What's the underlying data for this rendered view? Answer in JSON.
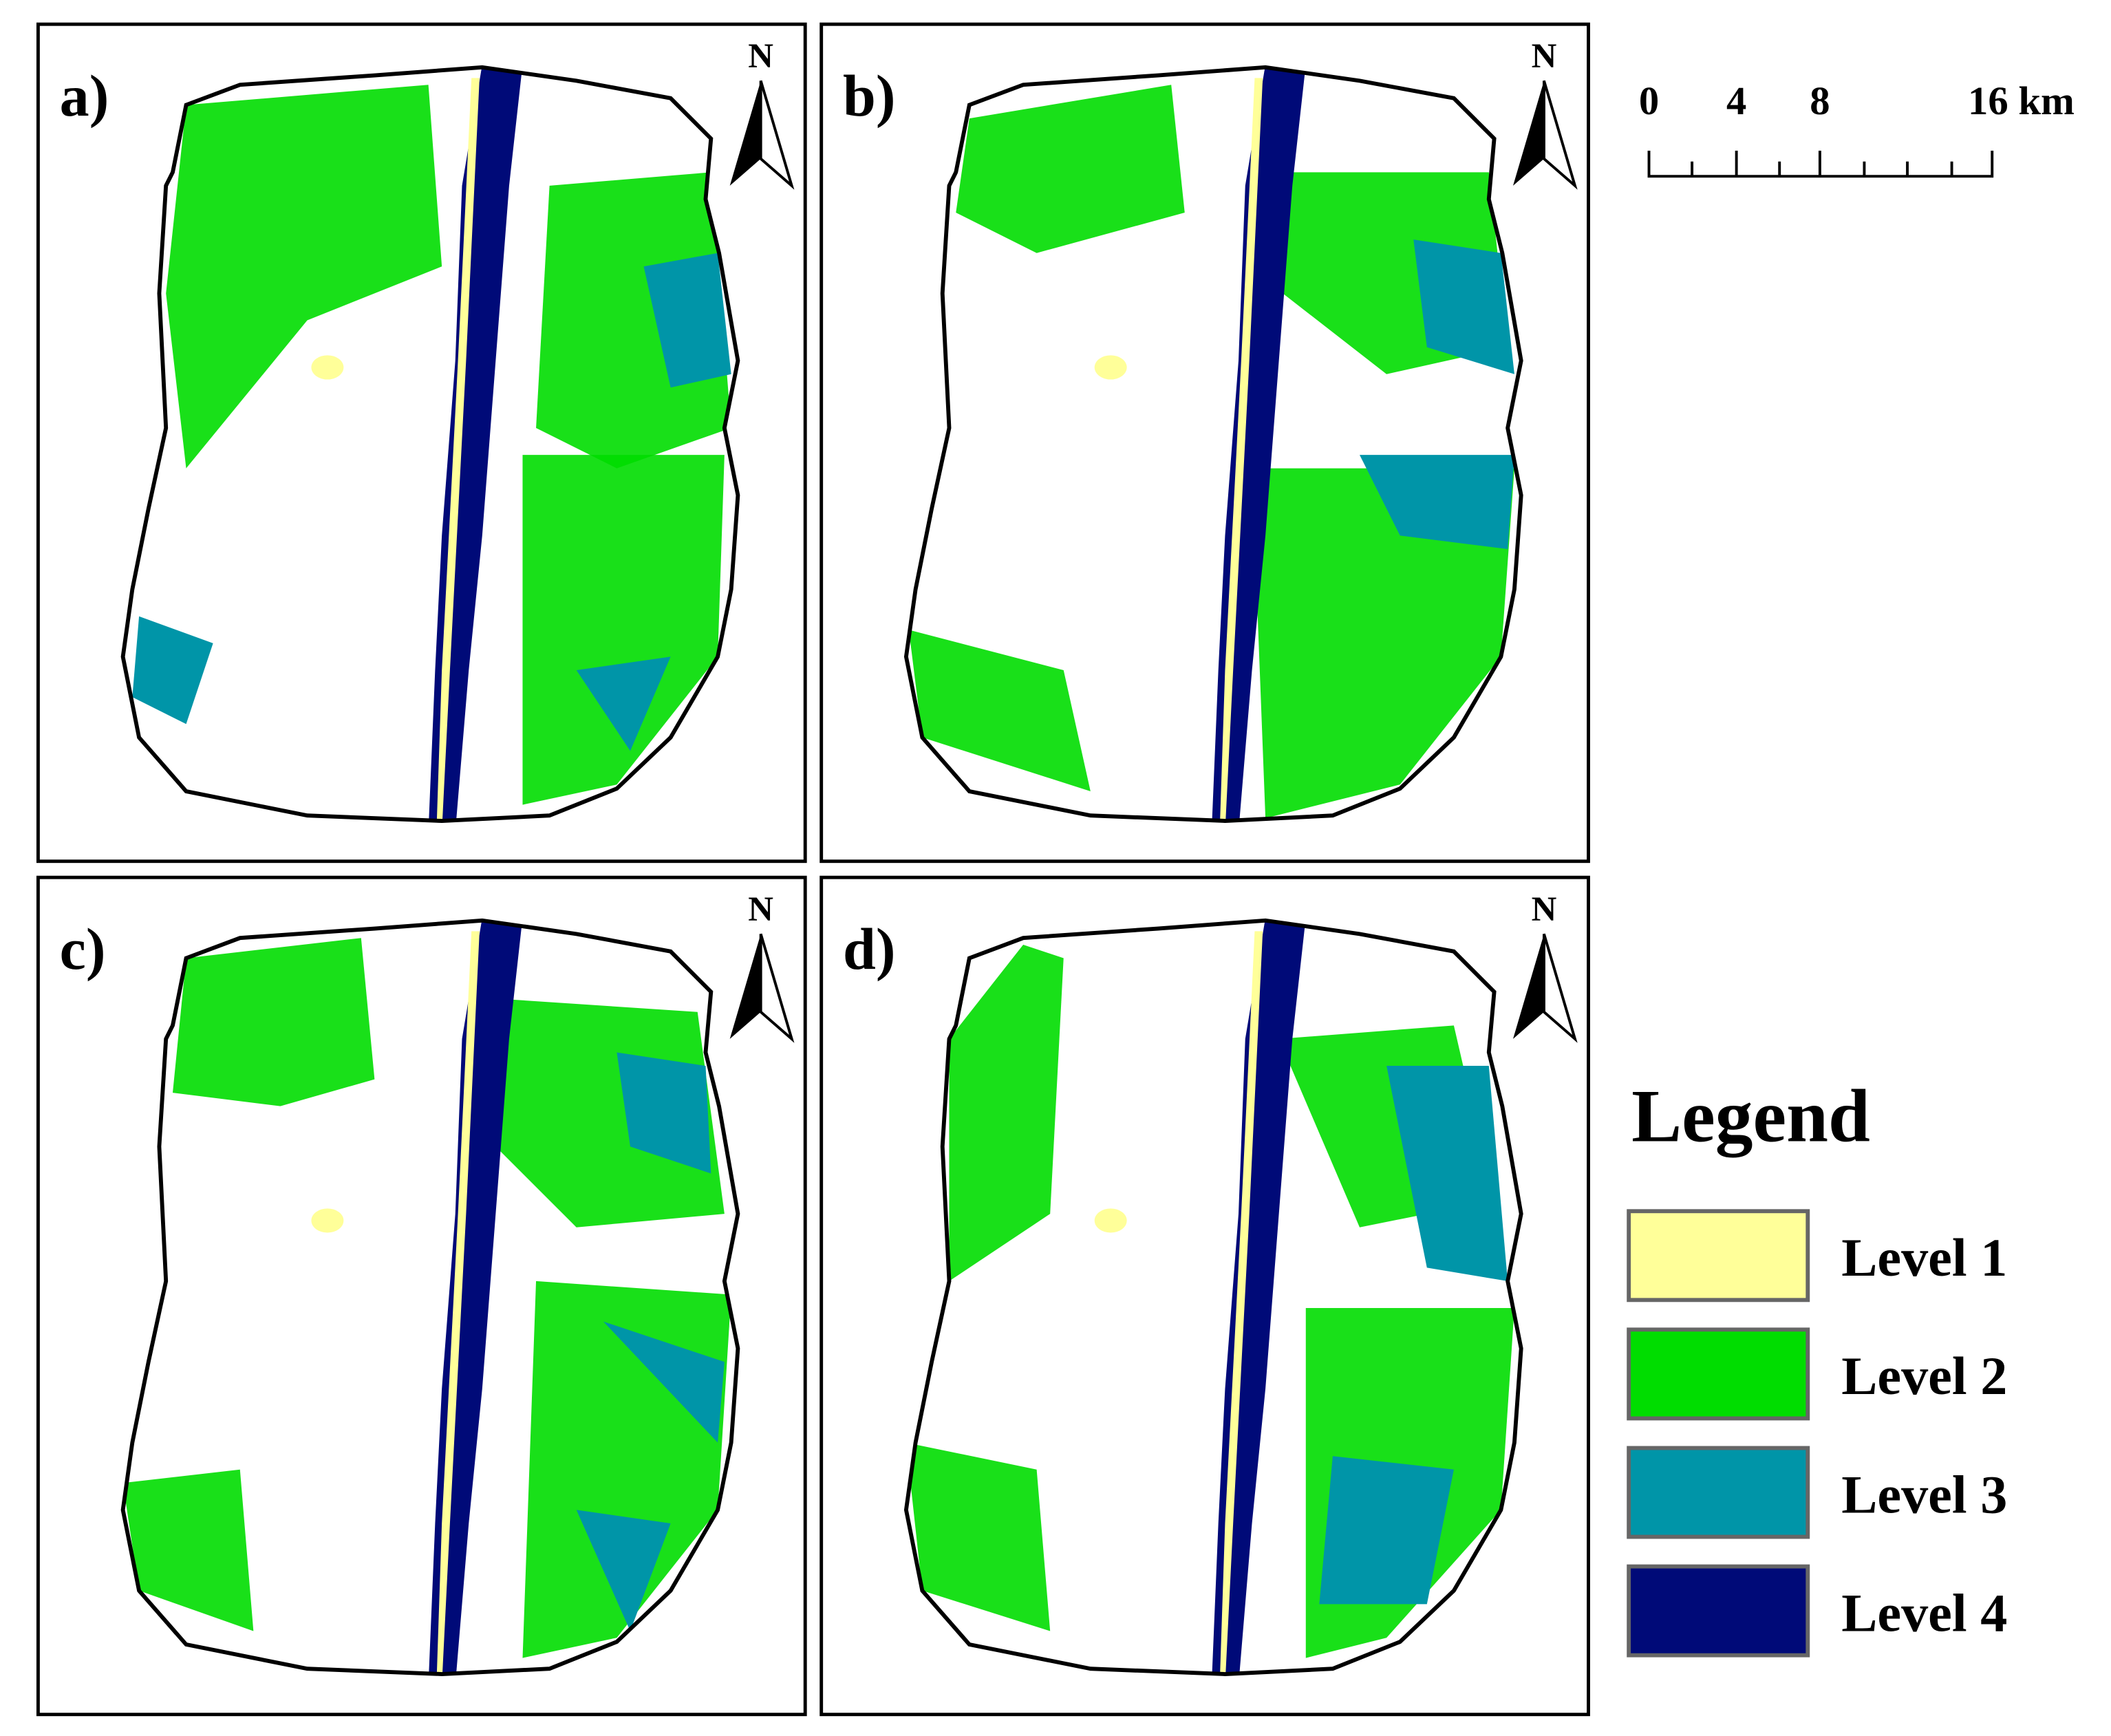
{
  "panels": [
    {
      "label": "a)",
      "north": "N"
    },
    {
      "label": "b)",
      "north": "N"
    },
    {
      "label": "c)",
      "north": "N"
    },
    {
      "label": "d)",
      "north": "N"
    }
  ],
  "scale_bar": {
    "labels": [
      "0",
      "4",
      "8",
      "16 km"
    ]
  },
  "legend": {
    "title": "Legend",
    "items": [
      {
        "label": "Level 1",
        "color": "#ffff99"
      },
      {
        "label": "Level 2",
        "color": "#00dd00"
      },
      {
        "label": "Level 3",
        "color": "#0095a8"
      },
      {
        "label": "Level 4",
        "color": "#000a78"
      }
    ]
  }
}
